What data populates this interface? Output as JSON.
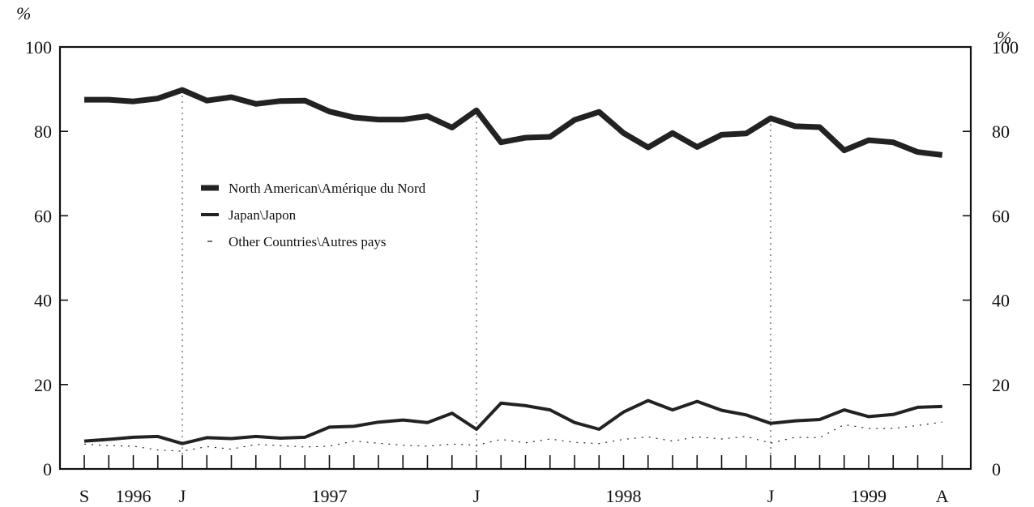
{
  "chart_data": {
    "type": "line",
    "unit_left": "%",
    "unit_right": "%",
    "ylim": [
      0,
      100
    ],
    "y_ticks": [
      "0",
      "20",
      "40",
      "60",
      "80",
      "100"
    ],
    "x_period": "September 1996 – April 1999 (monthly)",
    "x_ticks": [
      {
        "label": "S",
        "index": 0
      },
      {
        "label": "1996",
        "index": 2
      },
      {
        "label": "J",
        "index": 4
      },
      {
        "label": "1997",
        "index": 10
      },
      {
        "label": "J",
        "index": 16
      },
      {
        "label": "1998",
        "index": 22
      },
      {
        "label": "J",
        "index": 28
      },
      {
        "label": "1999",
        "index": 32
      },
      {
        "label": "A",
        "index": 35
      }
    ],
    "year_dividers": [
      4,
      16,
      28
    ],
    "series": [
      {
        "name": "North American\\Amérique du Nord",
        "color": "#222222",
        "style": "thick",
        "values": [
          87.5,
          87.5,
          87.1,
          87.8,
          89.8,
          87.3,
          88.1,
          86.5,
          87.2,
          87.3,
          84.7,
          83.3,
          82.8,
          82.8,
          83.6,
          80.9,
          85.0,
          77.4,
          78.5,
          78.7,
          82.7,
          84.6,
          79.6,
          76.2,
          79.6,
          76.3,
          79.2,
          79.5,
          83.1,
          81.2,
          81.0,
          75.5,
          77.9,
          77.4,
          75.1,
          74.4
        ]
      },
      {
        "name": "Japan\\Japon",
        "color": "#222222",
        "style": "solid",
        "values": [
          6.6,
          7.0,
          7.5,
          7.7,
          6.0,
          7.4,
          7.2,
          7.7,
          7.3,
          7.5,
          9.9,
          10.1,
          11.1,
          11.6,
          11.0,
          13.2,
          9.4,
          15.6,
          15.0,
          14.0,
          11.0,
          9.4,
          13.5,
          16.2,
          14.0,
          16.0,
          13.9,
          12.8,
          10.8,
          11.4,
          11.7,
          14.0,
          12.4,
          12.9,
          14.6,
          14.8
        ]
      },
      {
        "name": "Other Countries\\Autres pays",
        "color": "#222222",
        "style": "dotted",
        "values": [
          5.9,
          5.5,
          5.4,
          4.5,
          4.2,
          5.3,
          4.7,
          5.8,
          5.5,
          5.2,
          5.4,
          6.6,
          6.1,
          5.6,
          5.4,
          5.9,
          5.6,
          7.0,
          6.2,
          7.1,
          6.3,
          6.0,
          7.0,
          7.6,
          6.6,
          7.6,
          7.1,
          7.7,
          6.1,
          7.5,
          7.4,
          10.5,
          9.6,
          9.6,
          10.3,
          11.1
        ]
      }
    ],
    "grid": false,
    "legend_position": "upper-left inside plot"
  }
}
